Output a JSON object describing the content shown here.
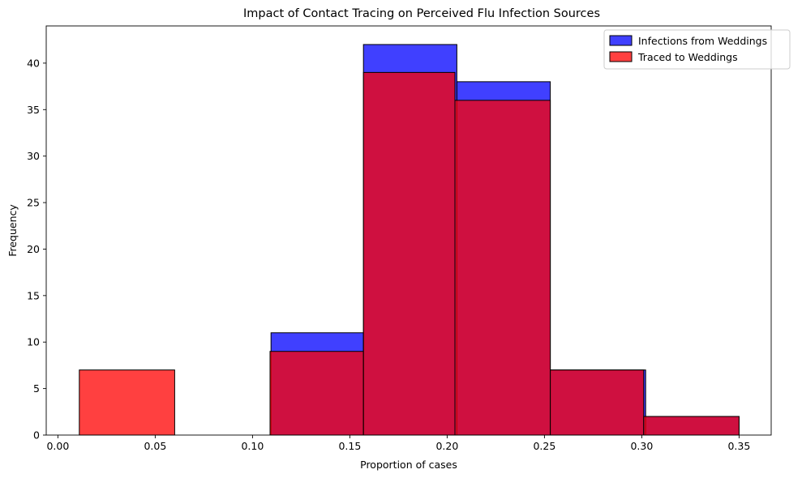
{
  "chart_data": {
    "type": "bar",
    "title": "Impact of Contact Tracing on Perceived Flu Infection Sources",
    "xlabel": "Proportion of cases",
    "ylabel": "Frequency",
    "xlim": [
      -0.006,
      0.3665
    ],
    "ylim": [
      0,
      44
    ],
    "xticks": [
      0.0,
      0.05,
      0.1,
      0.15,
      0.2,
      0.25,
      0.3,
      0.35
    ],
    "xtick_labels": [
      "0.00",
      "0.05",
      "0.10",
      "0.15",
      "0.20",
      "0.25",
      "0.30",
      "0.35"
    ],
    "yticks": [
      0,
      5,
      10,
      15,
      20,
      25,
      30,
      35,
      40
    ],
    "ytick_labels": [
      "0",
      "5",
      "10",
      "15",
      "20",
      "25",
      "30",
      "35",
      "40"
    ],
    "grid": false,
    "legend_position": "top-right",
    "series": [
      {
        "name": "Infections from Weddings",
        "color": "#0000ff",
        "opacity": 0.75,
        "bins": [
          {
            "x0": 0.1095,
            "x1": 0.157,
            "count": 11
          },
          {
            "x0": 0.157,
            "x1": 0.205,
            "count": 42
          },
          {
            "x0": 0.205,
            "x1": 0.253,
            "count": 38
          },
          {
            "x0": 0.253,
            "x1": 0.302,
            "count": 7
          },
          {
            "x0": 0.302,
            "x1": 0.35,
            "count": 2
          }
        ]
      },
      {
        "name": "Traced to Weddings",
        "color": "#ff0000",
        "opacity": 0.75,
        "bins": [
          {
            "x0": 0.011,
            "x1": 0.06,
            "count": 7
          },
          {
            "x0": 0.06,
            "x1": 0.109,
            "count": 0
          },
          {
            "x0": 0.109,
            "x1": 0.157,
            "count": 9
          },
          {
            "x0": 0.157,
            "x1": 0.204,
            "count": 39
          },
          {
            "x0": 0.204,
            "x1": 0.253,
            "count": 36
          },
          {
            "x0": 0.253,
            "x1": 0.301,
            "count": 7
          },
          {
            "x0": 0.301,
            "x1": 0.35,
            "count": 2
          }
        ]
      }
    ]
  }
}
